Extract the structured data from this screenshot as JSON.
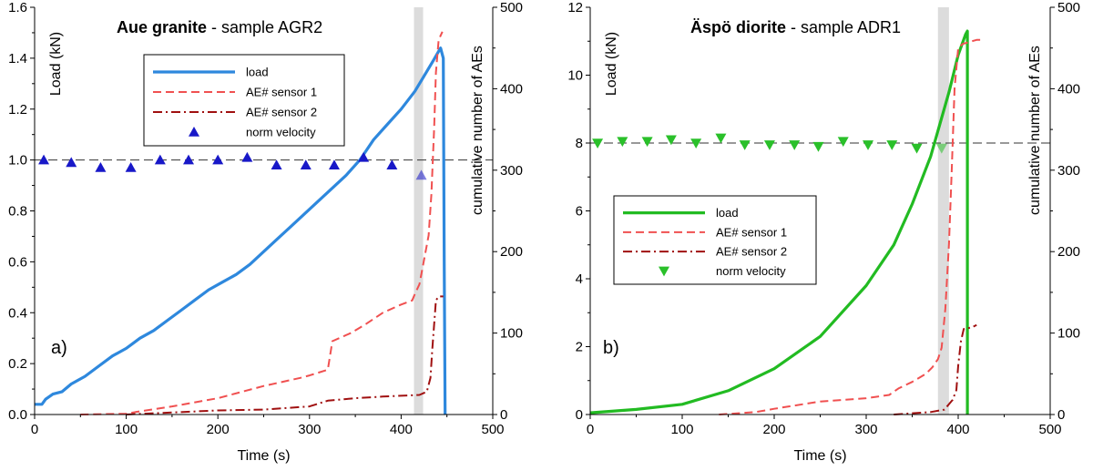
{
  "chart_data": [
    {
      "type": "line",
      "panel_label": "a)",
      "title_bold": "Aue granite",
      "title_rest": " - sample  AGR2",
      "xlabel": "Time (s)",
      "ylabel": "Load (kN)",
      "y2label": "cumulative number of AEs",
      "xlim": [
        0,
        500
      ],
      "ylim": [
        0,
        1.6
      ],
      "y2lim": [
        0,
        500
      ],
      "xticks": [
        "0",
        "100",
        "200",
        "300",
        "400",
        "500"
      ],
      "yticks": [
        "0.0",
        "0.2",
        "0.4",
        "0.6",
        "0.8",
        "1.0",
        "1.2",
        "1.4",
        "1.6"
      ],
      "y2ticks": [
        "0",
        "100",
        "200",
        "300",
        "400",
        "500"
      ],
      "shade_x": [
        414,
        424
      ],
      "ref_line_y": 1.0,
      "legend_position": "top-center",
      "colors": {
        "load": "#2e88dd",
        "ae1": "#f05050",
        "ae2": "#a01010",
        "vel": "#1818c8",
        "shade": "#dcdcdc"
      },
      "series": [
        {
          "name": "load",
          "style": "solid",
          "axis": "left",
          "points": [
            [
              0,
              0.04
            ],
            [
              8,
              0.04
            ],
            [
              12,
              0.06
            ],
            [
              20,
              0.08
            ],
            [
              30,
              0.09
            ],
            [
              40,
              0.12
            ],
            [
              55,
              0.15
            ],
            [
              70,
              0.19
            ],
            [
              85,
              0.23
            ],
            [
              100,
              0.26
            ],
            [
              115,
              0.3
            ],
            [
              130,
              0.33
            ],
            [
              145,
              0.37
            ],
            [
              160,
              0.41
            ],
            [
              175,
              0.45
            ],
            [
              190,
              0.49
            ],
            [
              205,
              0.52
            ],
            [
              220,
              0.55
            ],
            [
              235,
              0.59
            ],
            [
              250,
              0.64
            ],
            [
              265,
              0.69
            ],
            [
              280,
              0.74
            ],
            [
              295,
              0.79
            ],
            [
              310,
              0.84
            ],
            [
              325,
              0.89
            ],
            [
              340,
              0.94
            ],
            [
              355,
              1.0
            ],
            [
              370,
              1.08
            ],
            [
              385,
              1.14
            ],
            [
              400,
              1.2
            ],
            [
              415,
              1.27
            ],
            [
              425,
              1.33
            ],
            [
              435,
              1.39
            ],
            [
              443,
              1.44
            ],
            [
              446,
              1.4
            ],
            [
              447,
              0.6
            ],
            [
              448,
              0.0
            ]
          ]
        },
        {
          "name": "AE# sensor 1",
          "style": "dashed",
          "axis": "right",
          "points": [
            [
              50,
              0
            ],
            [
              100,
              1
            ],
            [
              110,
              3
            ],
            [
              150,
              10
            ],
            [
              200,
              20
            ],
            [
              250,
              35
            ],
            [
              290,
              45
            ],
            [
              300,
              48
            ],
            [
              320,
              55
            ],
            [
              325,
              90
            ],
            [
              345,
              100
            ],
            [
              360,
              110
            ],
            [
              380,
              125
            ],
            [
              400,
              135
            ],
            [
              412,
              140
            ],
            [
              415,
              148
            ],
            [
              420,
              160
            ],
            [
              425,
              190
            ],
            [
              430,
              220
            ],
            [
              433,
              270
            ],
            [
              436,
              350
            ],
            [
              438,
              420
            ],
            [
              441,
              460
            ],
            [
              445,
              470
            ]
          ]
        },
        {
          "name": "AE# sensor 2",
          "style": "dashdot",
          "axis": "right",
          "points": [
            [
              100,
              0
            ],
            [
              200,
              5
            ],
            [
              250,
              6
            ],
            [
              300,
              10
            ],
            [
              320,
              17
            ],
            [
              350,
              20
            ],
            [
              380,
              22
            ],
            [
              400,
              23
            ],
            [
              420,
              24
            ],
            [
              428,
              28
            ],
            [
              432,
              45
            ],
            [
              434,
              80
            ],
            [
              436,
              110
            ],
            [
              438,
              140
            ],
            [
              441,
              145
            ],
            [
              446,
              145
            ]
          ]
        },
        {
          "name": "norm velocity",
          "style": "marker",
          "marker": "triangle-up",
          "axis": "left",
          "points": [
            [
              10,
              1.0
            ],
            [
              40,
              0.99
            ],
            [
              72,
              0.97
            ],
            [
              105,
              0.97
            ],
            [
              137,
              1.0
            ],
            [
              168,
              1.0
            ],
            [
              200,
              1.0
            ],
            [
              232,
              1.01
            ],
            [
              264,
              0.98
            ],
            [
              296,
              0.98
            ],
            [
              327,
              0.98
            ],
            [
              359,
              1.01
            ],
            [
              390,
              0.98
            ],
            [
              422,
              0.94
            ]
          ]
        }
      ]
    },
    {
      "type": "line",
      "panel_label": "b)",
      "title_bold": "Äspö diorite",
      "title_rest": " - sample  ADR1",
      "xlabel": "Time (s)",
      "ylabel": "Load (kN)",
      "y2label": "cumulative number of AEs",
      "xlim": [
        0,
        500
      ],
      "ylim": [
        0,
        12
      ],
      "y2lim": [
        0,
        500
      ],
      "xticks": [
        "0",
        "100",
        "200",
        "300",
        "400",
        "500"
      ],
      "yticks": [
        "0",
        "2",
        "4",
        "6",
        "8",
        "10",
        "12"
      ],
      "y2ticks": [
        "0",
        "100",
        "200",
        "300",
        "400",
        "500"
      ],
      "shade_x": [
        378,
        390
      ],
      "ref_line_y": 8.0,
      "legend_position": "center-left",
      "colors": {
        "load": "#22bb22",
        "ae1": "#f05050",
        "ae2": "#a01010",
        "vel": "#2ac02a",
        "shade": "#dcdcdc"
      },
      "series": [
        {
          "name": "load",
          "style": "solid",
          "axis": "left",
          "points": [
            [
              0,
              0.05
            ],
            [
              50,
              0.15
            ],
            [
              100,
              0.3
            ],
            [
              150,
              0.7
            ],
            [
              200,
              1.35
            ],
            [
              250,
              2.3
            ],
            [
              300,
              3.8
            ],
            [
              330,
              5.0
            ],
            [
              350,
              6.2
            ],
            [
              370,
              7.6
            ],
            [
              390,
              9.5
            ],
            [
              400,
              10.6
            ],
            [
              408,
              11.2
            ],
            [
              410,
              11.3
            ],
            [
              410,
              0.0
            ]
          ]
        },
        {
          "name": "AE# sensor 1",
          "style": "dashed",
          "axis": "right",
          "points": [
            [
              140,
              0
            ],
            [
              180,
              3
            ],
            [
              200,
              7
            ],
            [
              250,
              16
            ],
            [
              300,
              20
            ],
            [
              325,
              24
            ],
            [
              335,
              32
            ],
            [
              350,
              40
            ],
            [
              365,
              50
            ],
            [
              372,
              58
            ],
            [
              378,
              68
            ],
            [
              382,
              82
            ],
            [
              386,
              130
            ],
            [
              390,
              210
            ],
            [
              393,
              300
            ],
            [
              396,
              400
            ],
            [
              400,
              450
            ],
            [
              405,
              455
            ],
            [
              420,
              460
            ],
            [
              425,
              460
            ]
          ]
        },
        {
          "name": "AE# sensor 2",
          "style": "dashdot",
          "axis": "right",
          "points": [
            [
              330,
              0
            ],
            [
              370,
              3
            ],
            [
              385,
              6
            ],
            [
              394,
              18
            ],
            [
              398,
              30
            ],
            [
              400,
              60
            ],
            [
              403,
              90
            ],
            [
              406,
              105
            ],
            [
              415,
              107
            ],
            [
              420,
              110
            ]
          ]
        },
        {
          "name": "norm velocity",
          "style": "marker",
          "marker": "triangle-down",
          "axis": "left",
          "points": [
            [
              8,
              8.0
            ],
            [
              35,
              8.05
            ],
            [
              62,
              8.05
            ],
            [
              88,
              8.1
            ],
            [
              115,
              8.0
            ],
            [
              142,
              8.15
            ],
            [
              168,
              7.95
            ],
            [
              195,
              7.95
            ],
            [
              222,
              7.95
            ],
            [
              248,
              7.9
            ],
            [
              275,
              8.05
            ],
            [
              302,
              7.95
            ],
            [
              328,
              7.95
            ],
            [
              355,
              7.85
            ],
            [
              382,
              7.85
            ]
          ]
        }
      ]
    }
  ]
}
